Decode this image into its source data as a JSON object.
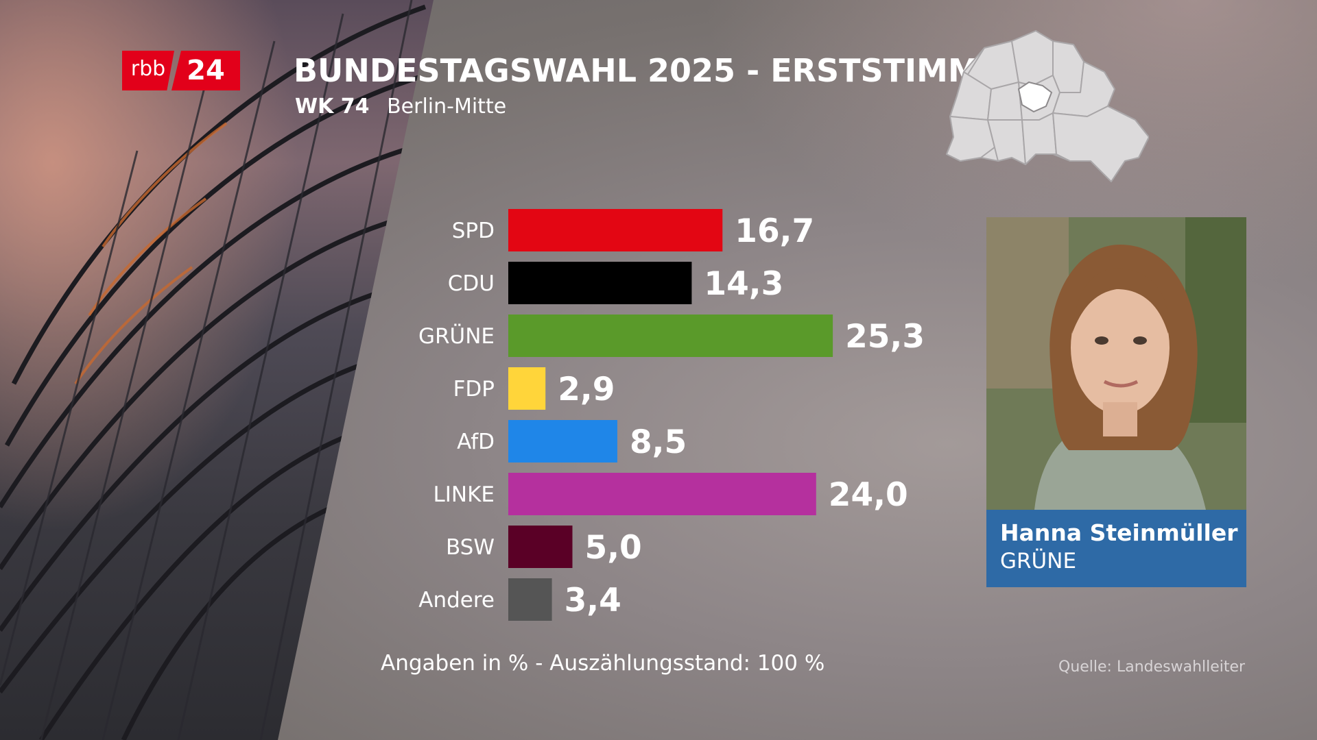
{
  "header": {
    "logo": {
      "part1": "rbb",
      "part2": "24"
    },
    "title": "BUNDESTAGSWAHL 2025 - ERSTSTIMMEN",
    "district_code": "WK 74",
    "district_name": "Berlin-Mitte"
  },
  "chart_data": {
    "type": "bar",
    "orientation": "horizontal",
    "categories": [
      "SPD",
      "CDU",
      "GRÜNE",
      "FDP",
      "AfD",
      "LINKE",
      "BSW",
      "Andere"
    ],
    "values": [
      16.7,
      14.3,
      25.3,
      2.9,
      8.5,
      24.0,
      5.0,
      3.4
    ],
    "value_labels": [
      "16,7",
      "14,3",
      "25,3",
      "2,9",
      "8,5",
      "24,0",
      "5,0",
      "3,4"
    ],
    "colors": [
      "#e30613",
      "#000000",
      "#5a9a2a",
      "#ffd53a",
      "#1f86e8",
      "#b5309e",
      "#5a0026",
      "#555555"
    ],
    "unit": "%"
  },
  "candidate": {
    "name": "Hanna Steinmüller",
    "party": "GRÜNE",
    "accent_color": "#2e6aa6"
  },
  "footer": {
    "note": "Angaben in % - Auszählungsstand:  100 %",
    "source": "Quelle: Landeswahlleiter"
  },
  "colors": {
    "brand_red": "#e2001a"
  }
}
